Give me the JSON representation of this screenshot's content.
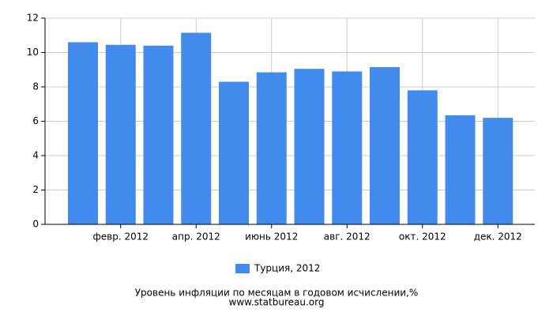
{
  "chart_data": {
    "type": "bar",
    "title": "Уровень инфляции по месяцам в годовом исчислении,%",
    "source": "www.statbureau.org",
    "categories": [
      null,
      "февр. 2012",
      null,
      "апр. 2012",
      null,
      "июнь 2012",
      null,
      "авг. 2012",
      null,
      "окт. 2012",
      null,
      "дек. 2012"
    ],
    "series": [
      {
        "name": "Турция, 2012",
        "color": "#428bed",
        "values": [
          10.6,
          10.45,
          10.4,
          11.15,
          8.3,
          8.85,
          9.05,
          8.9,
          9.15,
          7.8,
          6.35,
          6.2
        ]
      }
    ],
    "ylim": [
      0,
      12
    ],
    "yticks": [
      0,
      2,
      4,
      6,
      8,
      10,
      12
    ],
    "grid": true,
    "legend": "bottom"
  }
}
